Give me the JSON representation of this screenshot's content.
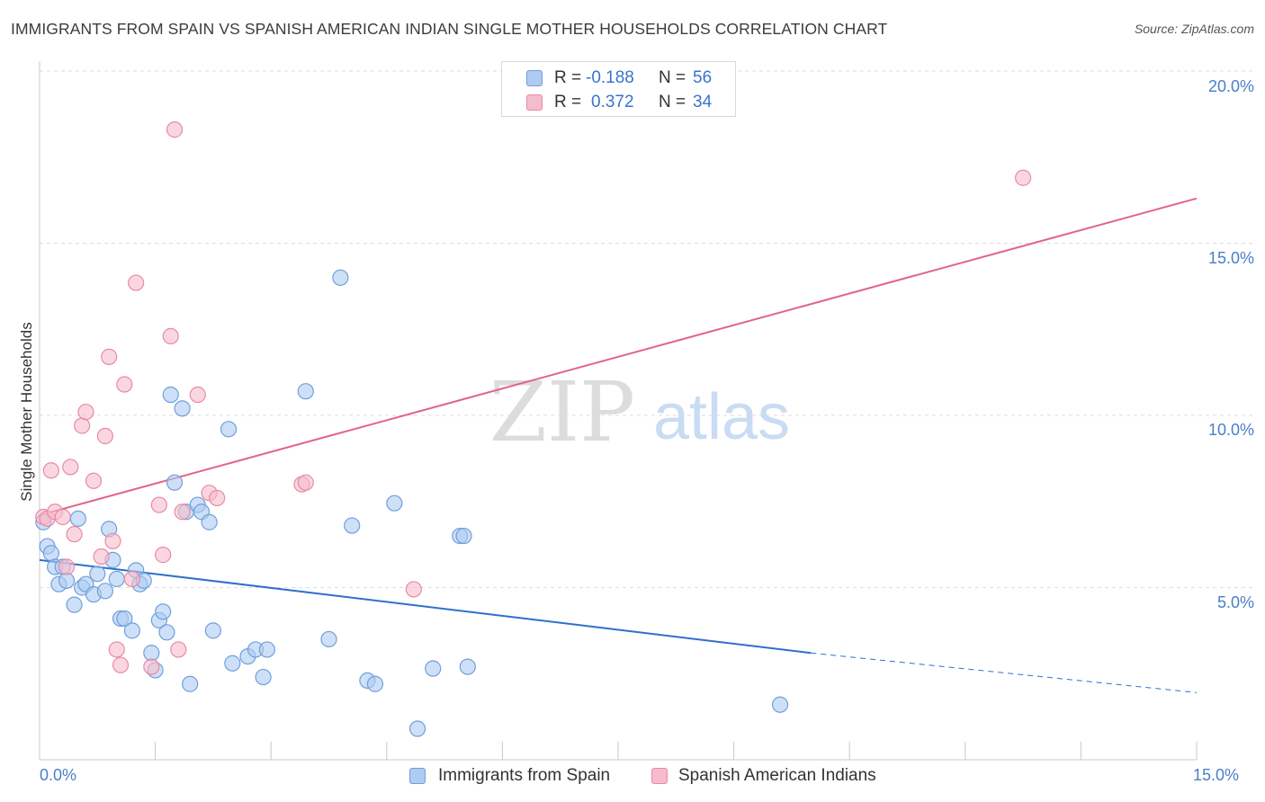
{
  "title": "IMMIGRANTS FROM SPAIN VS SPANISH AMERICAN INDIAN SINGLE MOTHER HOUSEHOLDS CORRELATION CHART",
  "source": "Source: ZipAtlas.com",
  "watermark": {
    "zip": "ZIP",
    "atlas": "atlas"
  },
  "legend_top": {
    "rows": [
      {
        "r_label": "R =",
        "r_value": "-0.188",
        "n_label": "N =",
        "n_value": "56",
        "color": "#aecbf1"
      },
      {
        "r_label": "R =",
        "r_value": "0.372",
        "n_label": "N =",
        "n_value": "34",
        "color": "#f6bccb"
      }
    ]
  },
  "chart_data": {
    "type": "scatter",
    "title": "IMMIGRANTS FROM SPAIN VS SPANISH AMERICAN INDIAN SINGLE MOTHER HOUSEHOLDS CORRELATION CHART",
    "xlabel": "",
    "ylabel": "Single Mother Households",
    "xlim": [
      0,
      15
    ],
    "ylim": [
      0,
      20.5
    ],
    "x_tick_labels": [
      "0.0%",
      "15.0%"
    ],
    "y_ticks": [
      5,
      10,
      15,
      20
    ],
    "y_tick_labels": [
      "5.0%",
      "10.0%",
      "15.0%",
      "20.0%"
    ],
    "grid": true,
    "legend_position": "bottom-center",
    "series": [
      {
        "name": "Immigrants from Spain",
        "color": "#aecbf1",
        "edge": "#6f9fdc",
        "line_color": "#2f6fce",
        "trend": {
          "x0": 0,
          "y0": 5.8,
          "x1": 10.0,
          "y1": 3.1,
          "dash_to": 15,
          "dash_y": 1.95
        },
        "points": [
          [
            0.05,
            6.9
          ],
          [
            0.1,
            6.2
          ],
          [
            0.15,
            6.0
          ],
          [
            0.2,
            5.6
          ],
          [
            0.25,
            5.1
          ],
          [
            0.3,
            5.6
          ],
          [
            0.35,
            5.2
          ],
          [
            0.45,
            4.5
          ],
          [
            0.5,
            7.0
          ],
          [
            0.55,
            5.0
          ],
          [
            0.6,
            5.1
          ],
          [
            0.7,
            4.8
          ],
          [
            0.75,
            5.4
          ],
          [
            0.85,
            4.9
          ],
          [
            0.9,
            6.7
          ],
          [
            0.95,
            5.8
          ],
          [
            1.0,
            5.25
          ],
          [
            1.05,
            4.1
          ],
          [
            1.1,
            4.1
          ],
          [
            1.2,
            3.75
          ],
          [
            1.25,
            5.5
          ],
          [
            1.3,
            5.1
          ],
          [
            1.35,
            5.2
          ],
          [
            1.45,
            3.1
          ],
          [
            1.5,
            2.6
          ],
          [
            1.55,
            4.05
          ],
          [
            1.6,
            4.3
          ],
          [
            1.65,
            3.7
          ],
          [
            1.7,
            10.6
          ],
          [
            1.75,
            8.05
          ],
          [
            1.85,
            10.2
          ],
          [
            1.9,
            7.2
          ],
          [
            1.95,
            2.2
          ],
          [
            2.05,
            7.4
          ],
          [
            2.1,
            7.2
          ],
          [
            2.2,
            6.9
          ],
          [
            2.25,
            3.75
          ],
          [
            2.45,
            9.6
          ],
          [
            2.5,
            2.8
          ],
          [
            2.7,
            3.0
          ],
          [
            2.8,
            3.2
          ],
          [
            2.9,
            2.4
          ],
          [
            2.95,
            3.2
          ],
          [
            3.45,
            10.7
          ],
          [
            3.75,
            3.5
          ],
          [
            3.9,
            14.0
          ],
          [
            4.05,
            6.8
          ],
          [
            4.25,
            2.3
          ],
          [
            4.35,
            2.2
          ],
          [
            4.6,
            7.45
          ],
          [
            4.9,
            0.9
          ],
          [
            5.1,
            2.65
          ],
          [
            5.45,
            6.5
          ],
          [
            5.5,
            6.5
          ],
          [
            5.55,
            2.7
          ],
          [
            9.6,
            1.6
          ]
        ]
      },
      {
        "name": "Spanish American Indians",
        "color": "#f6bccb",
        "edge": "#e88aa4",
        "line_color": "#e0648a",
        "trend": {
          "x0": 0,
          "y0": 7.1,
          "x1": 15,
          "y1": 16.3
        },
        "points": [
          [
            0.05,
            7.05
          ],
          [
            0.1,
            7.0
          ],
          [
            0.15,
            8.4
          ],
          [
            0.2,
            7.2
          ],
          [
            0.3,
            7.05
          ],
          [
            0.35,
            5.6
          ],
          [
            0.4,
            8.5
          ],
          [
            0.45,
            6.55
          ],
          [
            0.55,
            9.7
          ],
          [
            0.6,
            10.1
          ],
          [
            0.7,
            8.1
          ],
          [
            0.8,
            5.9
          ],
          [
            0.85,
            9.4
          ],
          [
            0.9,
            11.7
          ],
          [
            0.95,
            6.35
          ],
          [
            1.0,
            3.2
          ],
          [
            1.05,
            2.75
          ],
          [
            1.1,
            10.9
          ],
          [
            1.2,
            5.25
          ],
          [
            1.25,
            13.85
          ],
          [
            1.45,
            2.7
          ],
          [
            1.55,
            7.4
          ],
          [
            1.6,
            5.95
          ],
          [
            1.7,
            12.3
          ],
          [
            1.75,
            18.3
          ],
          [
            1.8,
            3.2
          ],
          [
            1.85,
            7.2
          ],
          [
            2.05,
            10.6
          ],
          [
            2.2,
            7.75
          ],
          [
            2.3,
            7.6
          ],
          [
            3.4,
            8.0
          ],
          [
            3.45,
            8.05
          ],
          [
            4.85,
            4.95
          ],
          [
            12.75,
            16.9
          ]
        ]
      }
    ]
  },
  "axis": {
    "ylabel": "Single Mother Households",
    "x_left_label": "0.0%",
    "x_right_label": "15.0%",
    "y_labels": [
      "5.0%",
      "10.0%",
      "15.0%",
      "20.0%"
    ]
  },
  "bottom_legend": [
    {
      "label": "Immigrants from Spain",
      "color": "#aecbf1",
      "edge": "#6f9fdc"
    },
    {
      "label": "Spanish American Indians",
      "color": "#f6bccb",
      "edge": "#e88aa4"
    }
  ]
}
